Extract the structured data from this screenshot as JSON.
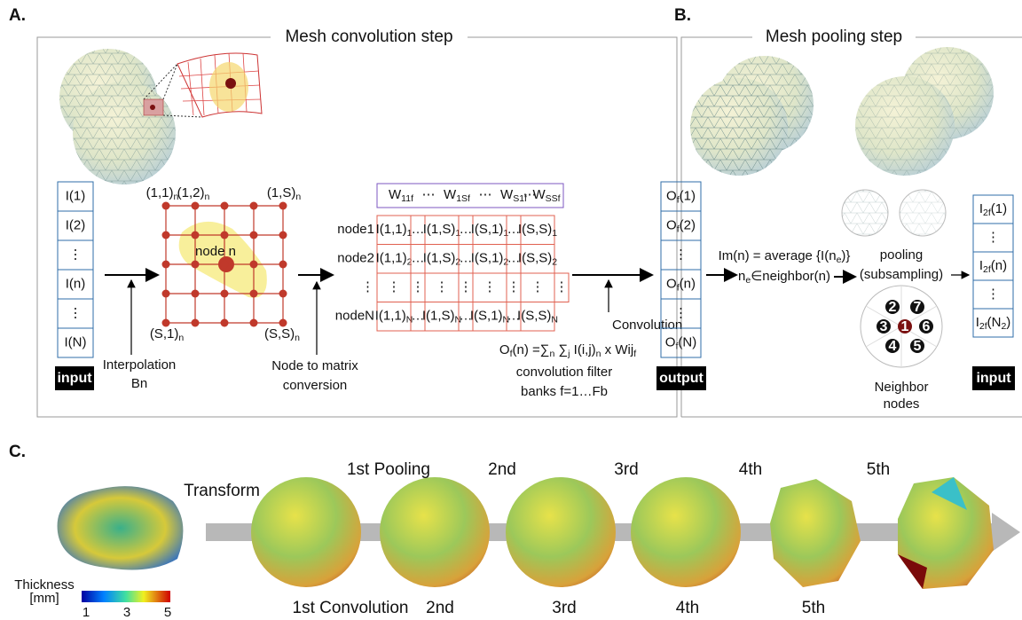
{
  "panel_a": {
    "letter": "A.",
    "title": "Mesh convolution step",
    "input_column": [
      "I(1)",
      "I(2)",
      "⋮",
      "I(n)",
      "⋮",
      "I(N)"
    ],
    "input_label": "input",
    "grid_labels": [
      [
        "(1,1)",
        "n"
      ],
      [
        "(1,2)",
        "n"
      ],
      [
        "(1,S)",
        "n"
      ],
      [
        "(S,1)",
        "n"
      ],
      [
        "(S,S)",
        "n"
      ]
    ],
    "center_node": "node n",
    "interpolation": [
      "Interpolation",
      "Bn"
    ],
    "conversion": [
      "Node to matrix",
      "conversion"
    ],
    "weights": [
      [
        "W",
        "11f"
      ],
      "⋯",
      [
        "W",
        "1Sf"
      ],
      "⋯",
      [
        "W",
        "S1f"
      ],
      "⋯",
      [
        "W",
        "SSf"
      ]
    ],
    "row_labels": [
      "node1",
      "node2",
      "⋮",
      "nodeN"
    ],
    "matrix": [
      [
        [
          "I(1,1)",
          "1"
        ],
        "…",
        [
          "I(1,S)",
          "1"
        ],
        "…",
        [
          "I(S,1)",
          "1"
        ],
        "…",
        [
          "I(S,S)",
          "1"
        ]
      ],
      [
        [
          "I(1,1)",
          "2"
        ],
        "…",
        [
          "I(1,S)",
          "2"
        ],
        "…",
        [
          "I(S,1)",
          "2"
        ],
        "…",
        [
          "I(S,S)",
          "2"
        ]
      ],
      [
        "⋮",
        "⋮",
        "⋮",
        "⋮",
        "⋮",
        "⋮",
        "⋮",
        "⋮"
      ],
      [
        [
          "I(1,1)",
          "N"
        ],
        "…",
        [
          "I(1,S)",
          "N"
        ],
        "…",
        [
          "I(S,1)",
          "N"
        ],
        "…",
        [
          "I(S,S)",
          "N"
        ]
      ]
    ],
    "convolution": "Convolution",
    "formula": [
      "O",
      "f",
      "(n) =∑",
      "n",
      " ∑",
      "j",
      " I(i,j)",
      "n",
      " x Wij",
      "f"
    ],
    "filter_text": [
      "convolution filter",
      "banks f=1…Fb"
    ],
    "output_column": [
      [
        "O",
        "f",
        "(1)"
      ],
      [
        "O",
        "f",
        "(2)"
      ],
      "⋮",
      [
        "O",
        "f",
        "(n)"
      ],
      "⋮",
      [
        "O",
        "f",
        "(N)"
      ]
    ],
    "output_label": "output"
  },
  "panel_b": {
    "letter": "B.",
    "title": "Mesh pooling step",
    "average": [
      "Im(n) = average {I(n",
      "e",
      ")}"
    ],
    "neighbor_set": [
      "n",
      "e",
      "∈neighbor(n)"
    ],
    "pooling": [
      "pooling",
      "(subsampling)"
    ],
    "neighbor_ids": [
      "2",
      "7",
      "3",
      "1",
      "6",
      "4",
      "5"
    ],
    "neighbor_caption": [
      "Neighbor",
      "nodes"
    ],
    "input_column": [
      [
        "I",
        "2f",
        "(1)"
      ],
      "⋮",
      [
        "I",
        "2f",
        "(n)"
      ],
      "⋮",
      [
        "I",
        "2f",
        "(N",
        "2",
        ")"
      ]
    ],
    "input_label": "input"
  },
  "panel_c": {
    "letter": "C.",
    "transform": "Transform",
    "pooling_labels": [
      "1st Pooling",
      "2nd",
      "3rd",
      "4th",
      "5th"
    ],
    "convolution_labels": [
      "1st Convolution",
      "2nd",
      "3rd",
      "4th",
      "5th"
    ],
    "colorbar_title": [
      "Thickness",
      "[mm]"
    ],
    "colorbar_ticks": [
      "1",
      "3",
      "5"
    ]
  }
}
